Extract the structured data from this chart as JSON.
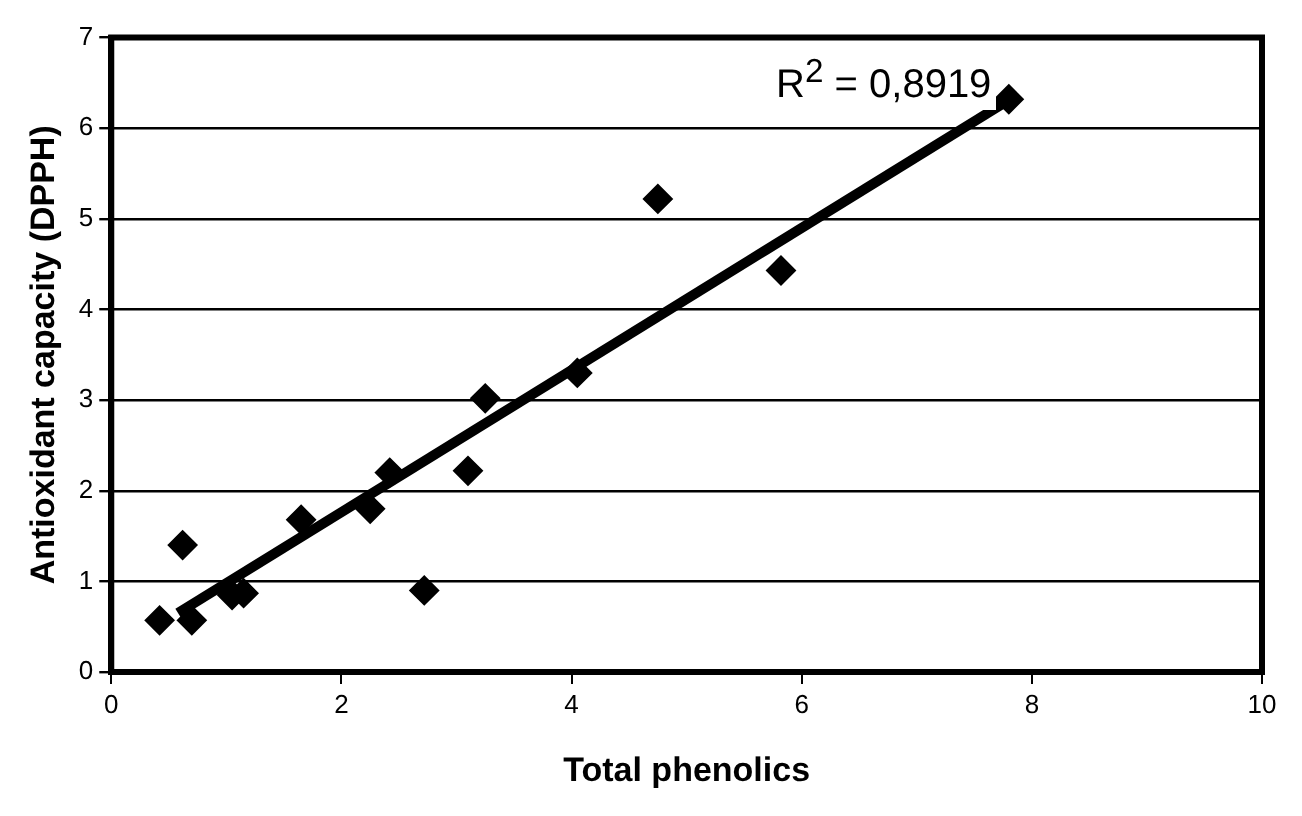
{
  "chart_data": {
    "type": "scatter",
    "xlabel": "Total phenolics",
    "ylabel": "Antioxidant capacity (DPPH)",
    "xlim": [
      0,
      10
    ],
    "xticks": [
      0,
      2,
      4,
      6,
      8,
      10
    ],
    "ylim": [
      0,
      7
    ],
    "yticks": [
      0,
      1,
      2,
      3,
      4,
      5,
      6,
      7
    ],
    "grid": "y",
    "legend": false,
    "annotations": [
      "R$^{2}$ = 0,8919"
    ],
    "series": [
      {
        "color": "#000000",
        "marker": "diamond",
        "x": [
          0.42,
          0.62,
          0.7,
          1.05,
          1.15,
          1.65,
          2.25,
          2.42,
          2.72,
          3.1,
          3.25,
          4.05,
          4.75,
          5.82,
          7.8
        ],
        "values": [
          0.57,
          1.4,
          0.57,
          0.85,
          0.87,
          1.68,
          1.8,
          2.2,
          0.9,
          2.22,
          3.02,
          3.3,
          5.22,
          4.43,
          6.32
        ]
      },
      {
        "type": "line",
        "color": "#000000",
        "line_style": "solid",
        "x": [
          0.58,
          7.85
        ],
        "values": [
          0.65,
          6.35
        ]
      }
    ]
  }
}
